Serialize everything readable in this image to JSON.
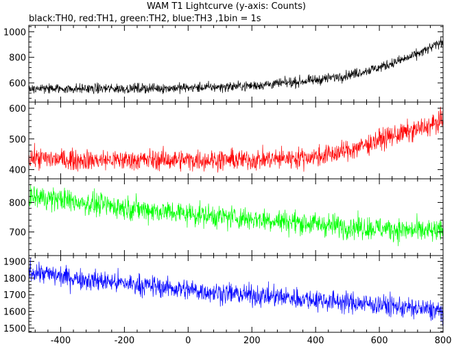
{
  "title": "WAM T1 Lightcurve (y-axis: Counts)",
  "subtitle": "black:TH0, red:TH1, green:TH2, blue:TH3 ,1bin = 1s",
  "chart_data": [
    {
      "type": "line",
      "title": "WAM T1 Lightcurve (y-axis: Counts)",
      "subtitle": "black:TH0, red:TH1, green:TH2, blue:TH3 ,1bin = 1s",
      "xlabel": "",
      "ylabel": "",
      "xlim": [
        -500,
        800
      ],
      "xticks": [
        -400,
        -200,
        0,
        200,
        400,
        600,
        800
      ],
      "grid": false,
      "panels": [
        {
          "color": "#000000",
          "ylim": [
            450,
            1050
          ],
          "yticks": [
            600,
            800,
            1000
          ],
          "x": [
            -500,
            -400,
            -300,
            -200,
            -100,
            0,
            100,
            200,
            300,
            400,
            500,
            600,
            700,
            750,
            800
          ],
          "y": [
            555,
            555,
            555,
            556,
            558,
            562,
            568,
            578,
            598,
            622,
            660,
            720,
            805,
            860,
            925
          ],
          "noise": 28
        },
        {
          "color": "#ff0000",
          "ylim": [
            370,
            620
          ],
          "yticks": [
            400,
            500,
            600
          ],
          "x": [
            -500,
            -400,
            -300,
            -200,
            -100,
            0,
            100,
            200,
            300,
            400,
            450,
            500,
            550,
            600,
            650,
            700,
            750,
            800
          ],
          "y": [
            438,
            433,
            431,
            431,
            432,
            431,
            432,
            432,
            436,
            442,
            450,
            462,
            478,
            498,
            512,
            525,
            540,
            560
          ],
          "noise": 24
        },
        {
          "color": "#00ff00",
          "ylim": [
            620,
            880
          ],
          "yticks": [
            700,
            800
          ],
          "x": [
            -500,
            -400,
            -300,
            -200,
            -100,
            0,
            100,
            200,
            300,
            400,
            500,
            600,
            700,
            800
          ],
          "y": [
            820,
            810,
            795,
            783,
            772,
            762,
            752,
            745,
            737,
            727,
            718,
            712,
            705,
            700
          ],
          "noise": 28
        },
        {
          "color": "#0000ff",
          "ylim": [
            1475,
            1935
          ],
          "yticks": [
            1500,
            1600,
            1700,
            1800,
            1900
          ],
          "x": [
            -500,
            -400,
            -300,
            -200,
            -100,
            0,
            100,
            200,
            300,
            400,
            500,
            600,
            700,
            800
          ],
          "y": [
            1842,
            1810,
            1787,
            1768,
            1750,
            1730,
            1712,
            1697,
            1685,
            1670,
            1655,
            1640,
            1620,
            1600
          ],
          "noise": 45
        }
      ]
    }
  ]
}
